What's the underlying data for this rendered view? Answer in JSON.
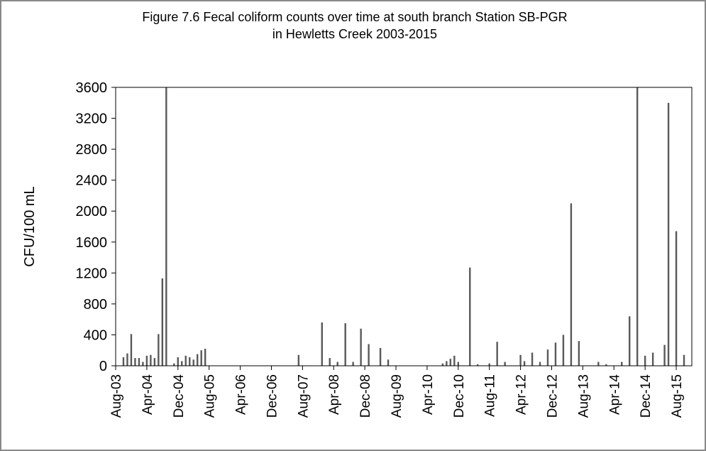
{
  "chart_data": {
    "type": "bar",
    "title": "Figure 7.6 Fecal coliform counts over time at south branch Station SB-PGR in Hewletts Creek 2003-2015",
    "y_label": "CFU/100 mL",
    "color": "#595959",
    "x": [
      "2003-10",
      "2003-11",
      "2003-12",
      "2004-01",
      "2004-02",
      "2004-03",
      "2004-04",
      "2004-05",
      "2004-06",
      "2004-07",
      "2004-08",
      "2004-09",
      "2004-11",
      "2004-12",
      "2005-01",
      "2005-02",
      "2005-03",
      "2005-04",
      "2005-05",
      "2005-06",
      "2005-07",
      "2007-07",
      "2008-01",
      "2008-03",
      "2008-05",
      "2008-07",
      "2008-09",
      "2008-11",
      "2009-01",
      "2009-04",
      "2009-06",
      "2010-08",
      "2010-09",
      "2010-10",
      "2010-11",
      "2010-12",
      "2011-03",
      "2011-05",
      "2011-08",
      "2011-10",
      "2011-12",
      "2012-04",
      "2012-05",
      "2012-07",
      "2012-09",
      "2012-11",
      "2013-01",
      "2013-03",
      "2013-05",
      "2013-07",
      "2013-12",
      "2014-02",
      "2014-06",
      "2014-08",
      "2014-10",
      "2014-12",
      "2015-02",
      "2015-05",
      "2015-06",
      "2015-08",
      "2015-10"
    ],
    "values": [
      110,
      160,
      410,
      100,
      100,
      50,
      130,
      140,
      100,
      410,
      1130,
      3600,
      30,
      110,
      60,
      130,
      110,
      80,
      150,
      200,
      220,
      140,
      560,
      100,
      50,
      550,
      50,
      480,
      280,
      230,
      80,
      30,
      60,
      90,
      130,
      50,
      1270,
      20,
      30,
      310,
      50,
      140,
      60,
      170,
      50,
      210,
      300,
      400,
      2100,
      320,
      50,
      20,
      50,
      640,
      3600,
      130,
      170,
      270,
      3400,
      1740,
      140
    ],
    "xlim": [
      "2003-08",
      "2015-12"
    ],
    "xticks": [
      {
        "value": "2003-08",
        "label": "Aug-03"
      },
      {
        "value": "2004-04",
        "label": "Apr-04"
      },
      {
        "value": "2004-12",
        "label": "Dec-04"
      },
      {
        "value": "2005-08",
        "label": "Aug-05"
      },
      {
        "value": "2006-04",
        "label": "Apr-06"
      },
      {
        "value": "2006-12",
        "label": "Dec-06"
      },
      {
        "value": "2007-08",
        "label": "Aug-07"
      },
      {
        "value": "2008-04",
        "label": "Apr-08"
      },
      {
        "value": "2008-12",
        "label": "Dec-08"
      },
      {
        "value": "2009-08",
        "label": "Aug-09"
      },
      {
        "value": "2010-04",
        "label": "Apr-10"
      },
      {
        "value": "2010-12",
        "label": "Dec-10"
      },
      {
        "value": "2011-08",
        "label": "Aug-11"
      },
      {
        "value": "2012-04",
        "label": "Apr-12"
      },
      {
        "value": "2012-12",
        "label": "Dec-12"
      },
      {
        "value": "2013-08",
        "label": "Aug-13"
      },
      {
        "value": "2014-04",
        "label": "Apr-14"
      },
      {
        "value": "2014-12",
        "label": "Dec-14"
      },
      {
        "value": "2015-08",
        "label": "Aug-15"
      }
    ],
    "ylim": [
      0,
      3600
    ],
    "yticks": [
      0,
      400,
      800,
      1200,
      1600,
      2000,
      2400,
      2800,
      3200,
      3600
    ],
    "grid": false
  }
}
